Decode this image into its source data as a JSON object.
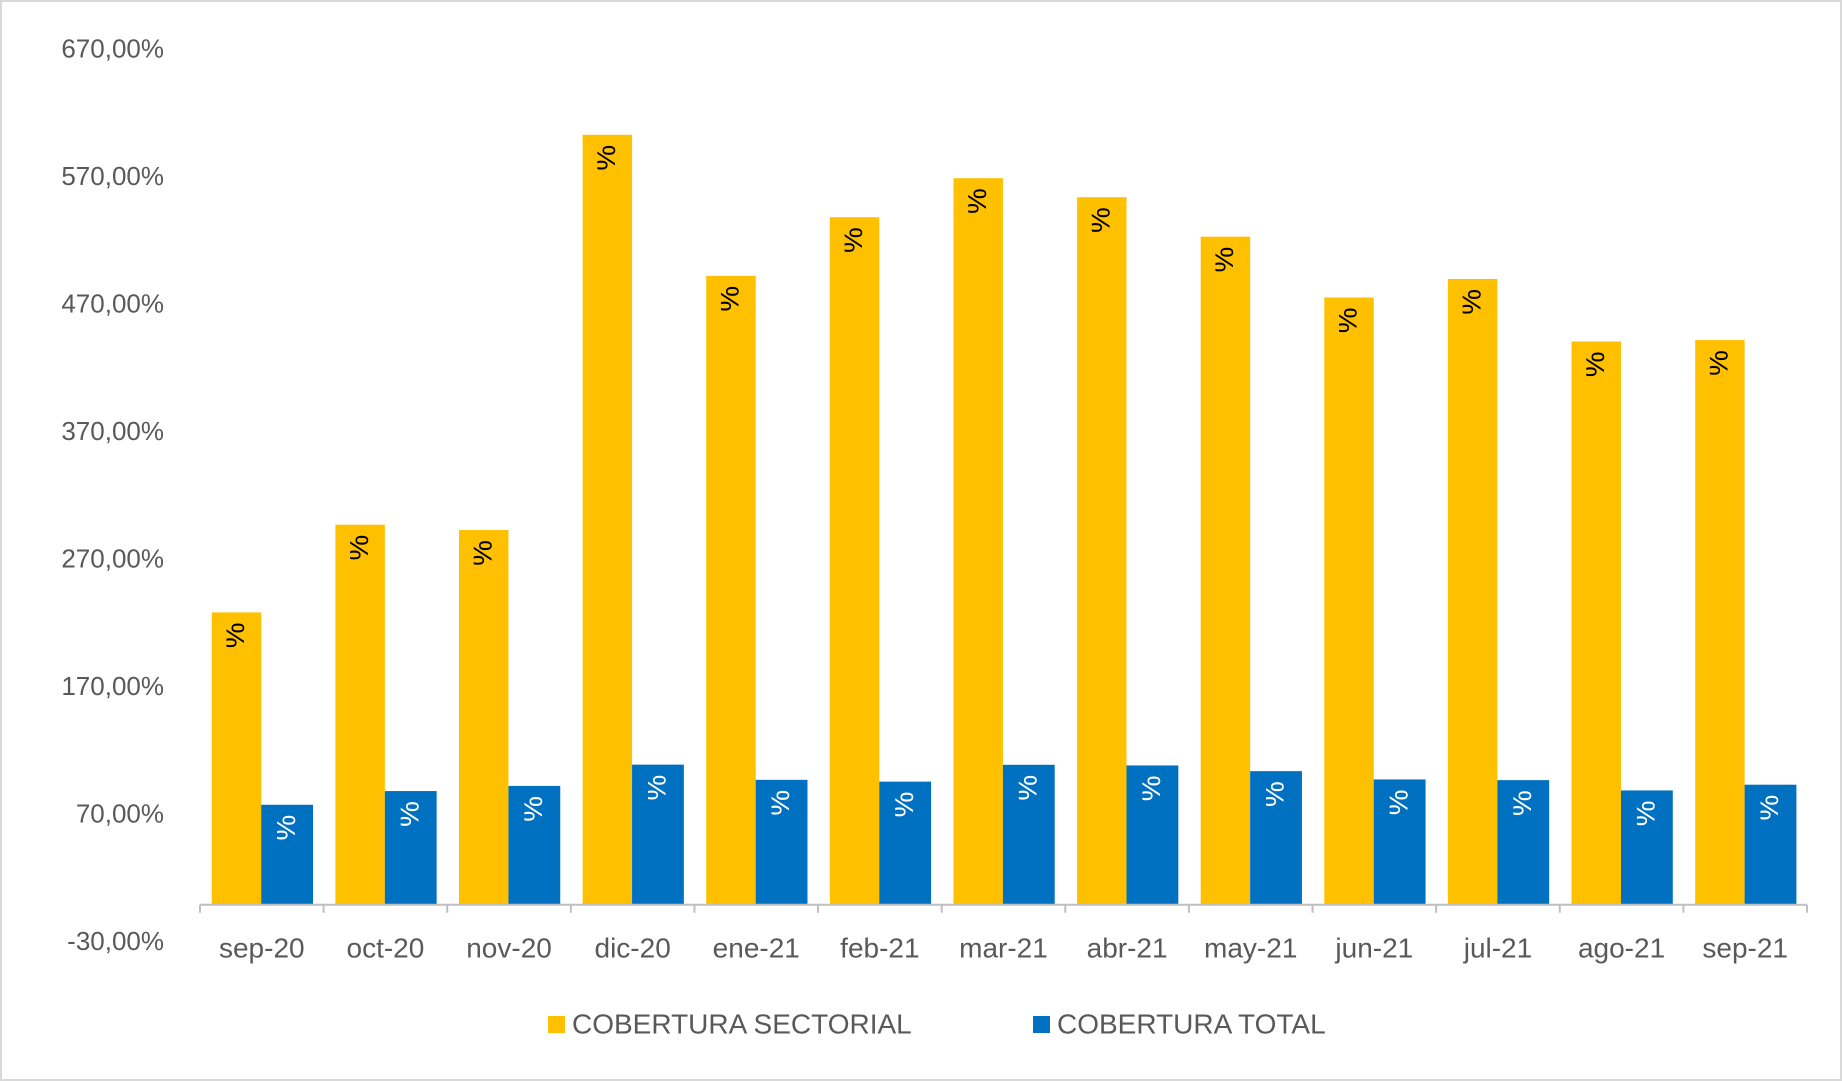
{
  "chart_data": {
    "type": "bar",
    "categories": [
      "sep-20",
      "oct-20",
      "nov-20",
      "dic-20",
      "ene-21",
      "feb-21",
      "mar-21",
      "abr-21",
      "may-21",
      "jun-21",
      "jul-21",
      "ago-21",
      "sep-21"
    ],
    "series": [
      {
        "name": "COBERTURA SECTORIAL",
        "color": "#ffc000",
        "values": [
          229.3,
          298.07,
          293.88,
          603.91,
          493.26,
          539.26,
          569.84,
          554.94,
          523.98,
          476.29,
          490.82,
          441.8,
          442.89
        ],
        "value_labels": [
          "229,30%",
          "298,07%",
          "293,88%",
          "603,91%",
          "493,26%",
          "539,26%",
          "569,84%",
          "554,94%",
          "523,98%",
          "476,29%",
          "490,82%",
          "441,80%",
          "442,89%"
        ]
      },
      {
        "name": "COBERTURA TOTAL",
        "color": "#0070c0",
        "values": [
          78.43,
          89.16,
          93.2,
          109.9,
          97.97,
          96.56,
          109.78,
          109.26,
          104.79,
          98.28,
          97.73,
          89.67,
          94.16
        ],
        "value_labels": [
          "78,43%",
          "89,16%",
          "93,20%",
          "109,90%",
          "97,97%",
          "96,56%",
          "109,78%",
          "109,26%",
          "104,79%",
          "98,28%",
          "97,73%",
          "89,67%",
          "94,16%"
        ]
      }
    ],
    "ylim": [
      -30,
      670
    ],
    "yticks": [
      {
        "value": -30,
        "label": "-30,00%"
      },
      {
        "value": 70,
        "label": "70,00%"
      },
      {
        "value": 170,
        "label": "170,00%"
      },
      {
        "value": 270,
        "label": "270,00%"
      },
      {
        "value": 370,
        "label": "370,00%"
      },
      {
        "value": 470,
        "label": "470,00%"
      },
      {
        "value": 570,
        "label": "570,00%"
      },
      {
        "value": 670,
        "label": "670,00%"
      }
    ],
    "grid": false,
    "legend": "bottom"
  }
}
